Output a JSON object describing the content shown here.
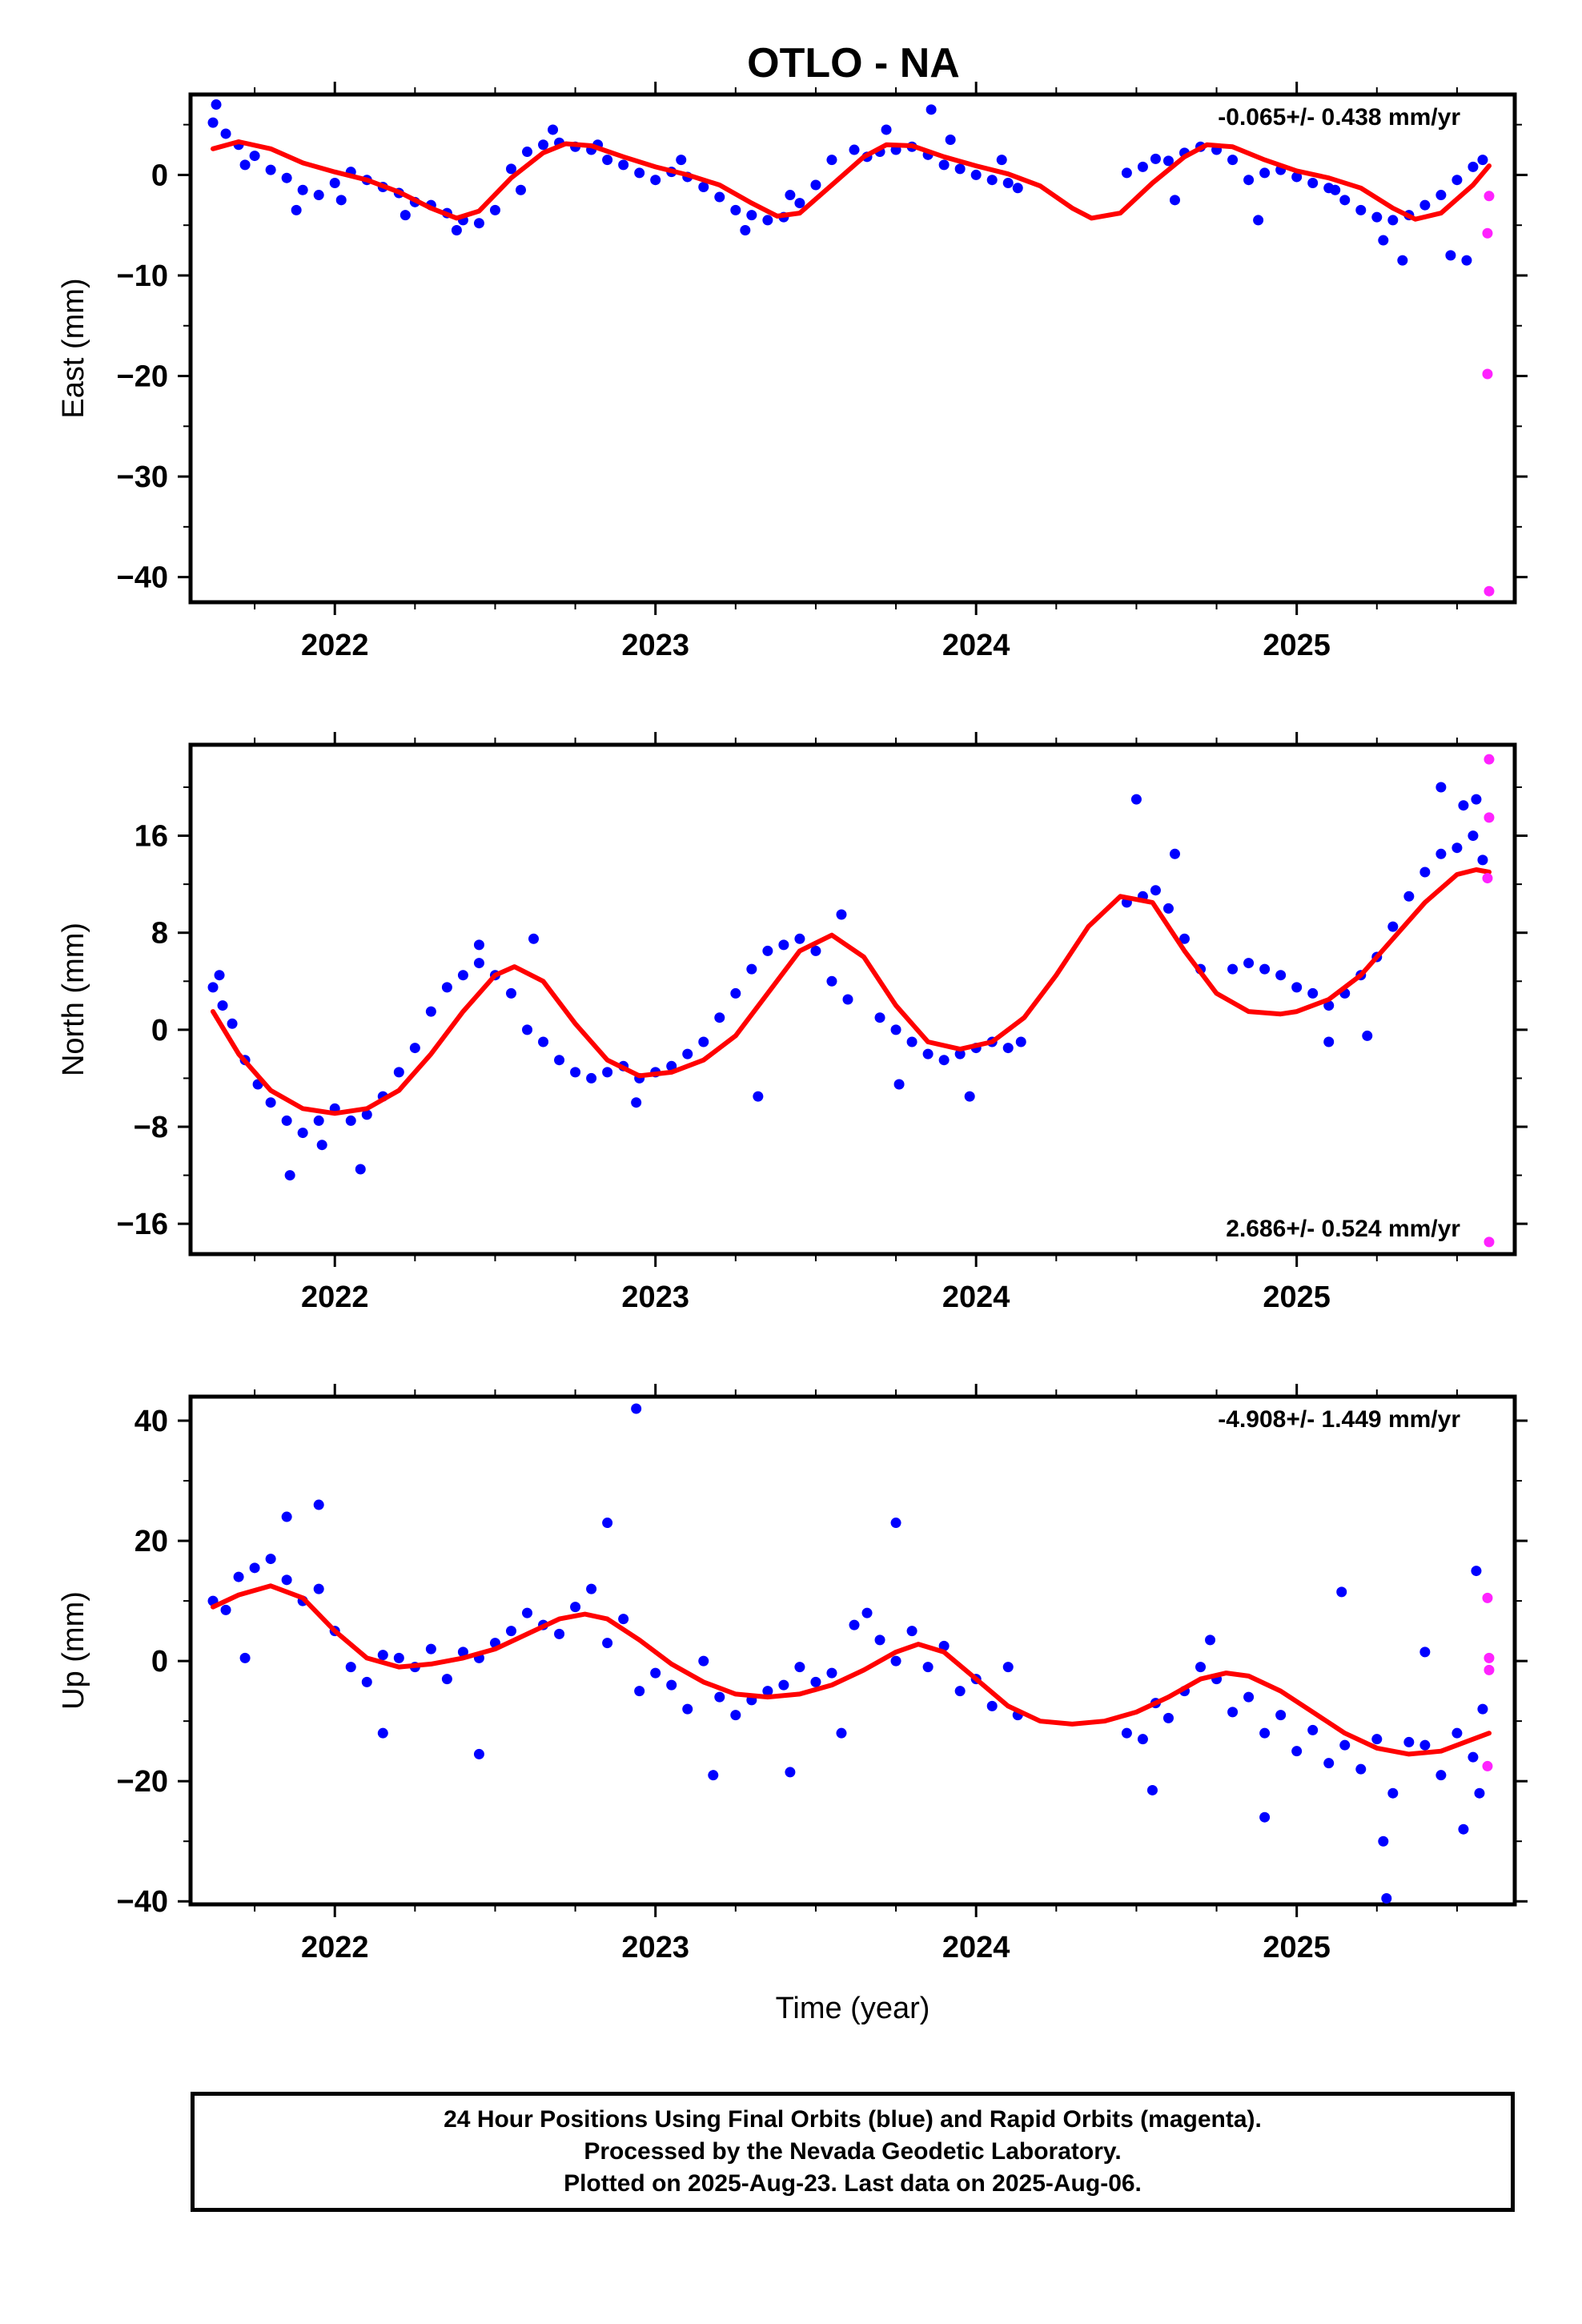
{
  "title": "OTLO - NA",
  "footer": {
    "line1": "24 Hour Positions Using Final Orbits (blue) and Rapid Orbits (magenta).",
    "line2": "Processed by the Nevada Geodetic Laboratory.",
    "line3": "Plotted on 2025-Aug-23. Last data on 2025-Aug-06."
  },
  "colors": {
    "final": "#0000ff",
    "rapid": "#ff22ff",
    "model": "#ff0000",
    "frame": "#000000"
  },
  "chart_data": [
    {
      "type": "scatter",
      "ylabel": "East (mm)",
      "xlabel": "",
      "rate": "-0.065+/- 0.438 mm/yr",
      "rate_position": "top-right",
      "xlim": [
        2021.55,
        2025.68
      ],
      "ylim": [
        -42.5,
        8
      ],
      "xticks": [
        2022,
        2023,
        2024,
        2025
      ],
      "xtick_labels": [
        "2022",
        "2023",
        "2024",
        "2025"
      ],
      "yticks": [
        0,
        -10,
        -20,
        -30,
        -40
      ],
      "ytick_labels": [
        "0",
        "−10",
        "−20",
        "−30",
        "−40"
      ],
      "series": [
        {
          "role": "final",
          "x": [
            2021.62,
            2021.66,
            2021.7,
            2021.75,
            2021.8,
            2021.85,
            2021.9,
            2021.95,
            2022.0,
            2022.05,
            2022.1,
            2022.15,
            2022.2,
            2022.25,
            2022.3,
            2022.35,
            2022.4,
            2022.45,
            2022.5,
            2022.55,
            2022.6,
            2022.65,
            2022.7,
            2022.75,
            2022.8,
            2022.85,
            2022.9,
            2022.95,
            2023.0,
            2023.05,
            2023.1,
            2023.15,
            2023.2,
            2023.25,
            2023.3,
            2023.35,
            2023.4,
            2023.45,
            2023.5,
            2023.55,
            2023.62,
            2023.66,
            2023.7,
            2023.75,
            2023.8,
            2023.85,
            2023.9,
            2023.95,
            2024.0,
            2024.05,
            2024.1,
            2024.13,
            2024.47,
            2024.52,
            2024.56,
            2024.6,
            2024.65,
            2024.7,
            2024.75,
            2024.8,
            2024.85,
            2024.9,
            2024.95,
            2025.0,
            2025.05,
            2025.1,
            2025.15,
            2025.2,
            2025.25,
            2025.3,
            2025.35,
            2025.4,
            2025.45,
            2025.5,
            2025.55,
            2025.58,
            2021.63,
            2021.72,
            2021.88,
            2022.02,
            2022.22,
            2022.38,
            2022.58,
            2022.68,
            2022.82,
            2023.08,
            2023.28,
            2023.42,
            2023.72,
            2023.86,
            2023.92,
            2024.08,
            2024.62,
            2024.88,
            2025.12,
            2025.27,
            2025.33,
            2025.48,
            2025.53
          ],
          "y": [
            5.2,
            4.1,
            3.0,
            1.9,
            0.5,
            -0.3,
            -1.5,
            -2.0,
            -0.8,
            0.3,
            -0.5,
            -1.2,
            -1.8,
            -2.7,
            -3.0,
            -3.8,
            -4.5,
            -4.8,
            -3.5,
            0.6,
            2.3,
            3.0,
            3.2,
            2.8,
            2.5,
            1.5,
            1.0,
            0.2,
            -0.5,
            0.3,
            -0.2,
            -1.2,
            -2.2,
            -3.5,
            -4.0,
            -4.5,
            -4.2,
            -2.8,
            -1.0,
            1.5,
            2.5,
            1.8,
            2.3,
            2.5,
            2.8,
            2.0,
            1.0,
            0.6,
            0.0,
            -0.5,
            -0.8,
            -1.3,
            0.2,
            0.8,
            1.6,
            1.4,
            2.2,
            2.8,
            2.5,
            1.5,
            -0.5,
            0.2,
            0.5,
            -0.2,
            -0.8,
            -1.3,
            -2.5,
            -3.5,
            -4.2,
            -4.5,
            -4.0,
            -3.0,
            -2.0,
            -0.5,
            0.8,
            1.5,
            7.0,
            1.0,
            -3.5,
            -2.5,
            -4.0,
            -5.5,
            -1.5,
            4.5,
            3.0,
            1.5,
            -5.5,
            -2.0,
            4.5,
            6.5,
            3.5,
            1.5,
            -2.5,
            -4.5,
            -1.5,
            -6.5,
            -8.5,
            -8.0,
            -8.5
          ]
        },
        {
          "role": "rapid",
          "x": [
            2025.6,
            2025.595,
            2025.595,
            2025.6
          ],
          "y": [
            -2.1,
            -5.8,
            -19.8,
            -41.4
          ]
        },
        {
          "role": "model",
          "x": [
            2021.62,
            2021.7,
            2021.8,
            2021.9,
            2022.0,
            2022.1,
            2022.2,
            2022.3,
            2022.38,
            2022.45,
            2022.55,
            2022.65,
            2022.72,
            2022.8,
            2022.9,
            2023.0,
            2023.1,
            2023.2,
            2023.3,
            2023.38,
            2023.45,
            2023.55,
            2023.65,
            2023.72,
            2023.8,
            2023.9,
            2024.0,
            2024.1,
            2024.2,
            2024.3,
            2024.36,
            2024.45,
            2024.55,
            2024.65,
            2024.72,
            2024.8,
            2024.9,
            2025.0,
            2025.1,
            2025.2,
            2025.3,
            2025.37,
            2025.45,
            2025.55,
            2025.6
          ],
          "y": [
            2.6,
            3.3,
            2.6,
            1.2,
            0.3,
            -0.5,
            -1.7,
            -3.3,
            -4.3,
            -3.6,
            -0.3,
            2.2,
            3.1,
            2.9,
            1.8,
            0.8,
            0.0,
            -1.0,
            -2.8,
            -4.1,
            -3.8,
            -1.0,
            1.8,
            3.0,
            2.9,
            1.8,
            0.9,
            0.1,
            -1.1,
            -3.3,
            -4.3,
            -3.8,
            -0.8,
            1.8,
            3.0,
            2.8,
            1.5,
            0.4,
            -0.3,
            -1.3,
            -3.3,
            -4.4,
            -3.8,
            -1.0,
            0.9
          ]
        }
      ]
    },
    {
      "type": "scatter",
      "ylabel": "North (mm)",
      "xlabel": "",
      "rate": "2.686+/- 0.524 mm/yr",
      "rate_position": "bottom-right",
      "xlim": [
        2021.55,
        2025.68
      ],
      "ylim": [
        -18.5,
        23.5
      ],
      "xticks": [
        2022,
        2023,
        2024,
        2025
      ],
      "xtick_labels": [
        "2022",
        "2023",
        "2024",
        "2025"
      ],
      "yticks": [
        16,
        8,
        0,
        -8,
        -16
      ],
      "ytick_labels": [
        "16",
        "8",
        "0",
        "−8",
        "−16"
      ],
      "series": [
        {
          "role": "final",
          "x": [
            2021.62,
            2021.65,
            2021.68,
            2021.72,
            2021.76,
            2021.8,
            2021.85,
            2021.9,
            2021.95,
            2022.0,
            2022.05,
            2022.1,
            2022.15,
            2022.2,
            2022.25,
            2022.3,
            2022.35,
            2022.4,
            2022.45,
            2022.5,
            2022.55,
            2022.6,
            2022.65,
            2022.7,
            2022.75,
            2022.8,
            2022.85,
            2022.9,
            2022.95,
            2023.0,
            2023.05,
            2023.1,
            2023.15,
            2023.2,
            2023.25,
            2023.3,
            2023.35,
            2023.4,
            2023.45,
            2023.5,
            2023.55,
            2023.6,
            2023.7,
            2023.75,
            2023.8,
            2023.85,
            2023.9,
            2023.95,
            2024.0,
            2024.05,
            2024.1,
            2024.14,
            2024.47,
            2024.52,
            2024.56,
            2024.6,
            2024.65,
            2024.7,
            2024.8,
            2024.85,
            2024.9,
            2024.95,
            2025.0,
            2025.05,
            2025.1,
            2025.15,
            2025.2,
            2025.25,
            2025.3,
            2025.35,
            2025.4,
            2025.45,
            2025.5,
            2025.55,
            2025.58,
            2021.64,
            2021.86,
            2021.96,
            2022.08,
            2022.45,
            2022.62,
            2022.94,
            2023.32,
            2023.58,
            2023.76,
            2023.98,
            2024.5,
            2024.62,
            2025.1,
            2025.22,
            2025.45,
            2025.52,
            2025.56
          ],
          "y": [
            3.5,
            2.0,
            0.5,
            -2.5,
            -4.5,
            -6.0,
            -7.5,
            -8.5,
            -7.5,
            -6.5,
            -7.5,
            -7.0,
            -5.5,
            -3.5,
            -1.5,
            1.5,
            3.5,
            4.5,
            5.5,
            4.5,
            3.0,
            0.0,
            -1.0,
            -2.5,
            -3.5,
            -4.0,
            -3.5,
            -3.0,
            -4.0,
            -3.5,
            -3.0,
            -2.0,
            -1.0,
            1.0,
            3.0,
            5.0,
            6.5,
            7.0,
            7.5,
            6.5,
            4.0,
            2.5,
            1.0,
            0.0,
            -1.0,
            -2.0,
            -2.5,
            -2.0,
            -1.5,
            -1.0,
            -1.5,
            -1.0,
            10.5,
            11.0,
            11.5,
            10.0,
            7.5,
            5.0,
            5.0,
            5.5,
            5.0,
            4.5,
            3.5,
            3.0,
            2.0,
            3.0,
            4.5,
            6.0,
            8.5,
            11.0,
            13.0,
            14.5,
            15.0,
            16.0,
            14.0,
            4.5,
            -12.0,
            -9.5,
            -11.5,
            7.0,
            7.5,
            -6.0,
            -5.5,
            9.5,
            -4.5,
            -5.5,
            19.0,
            14.5,
            -1.0,
            -0.5,
            20.0,
            18.5,
            19.0
          ]
        },
        {
          "role": "rapid",
          "x": [
            2025.6,
            2025.6,
            2025.595,
            2025.6
          ],
          "y": [
            22.3,
            17.5,
            12.5,
            -17.5
          ]
        },
        {
          "role": "model",
          "x": [
            2021.62,
            2021.7,
            2021.8,
            2021.9,
            2022.0,
            2022.1,
            2022.2,
            2022.3,
            2022.4,
            2022.5,
            2022.56,
            2022.65,
            2022.75,
            2022.85,
            2022.95,
            2023.05,
            2023.15,
            2023.25,
            2023.35,
            2023.45,
            2023.55,
            2023.65,
            2023.75,
            2023.85,
            2023.95,
            2024.05,
            2024.15,
            2024.25,
            2024.35,
            2024.45,
            2024.55,
            2024.65,
            2024.75,
            2024.85,
            2024.95,
            2025.0,
            2025.1,
            2025.2,
            2025.3,
            2025.4,
            2025.5,
            2025.56,
            2025.6
          ],
          "y": [
            1.5,
            -2.0,
            -5.0,
            -6.5,
            -6.9,
            -6.5,
            -5.0,
            -2.0,
            1.5,
            4.5,
            5.2,
            4.0,
            0.5,
            -2.5,
            -3.8,
            -3.5,
            -2.5,
            -0.5,
            3.0,
            6.5,
            7.8,
            6.0,
            2.0,
            -1.0,
            -1.6,
            -1.0,
            1.0,
            4.5,
            8.5,
            11.0,
            10.5,
            6.5,
            3.0,
            1.5,
            1.3,
            1.5,
            2.5,
            4.5,
            7.5,
            10.5,
            12.8,
            13.2,
            13.0
          ]
        }
      ]
    },
    {
      "type": "scatter",
      "ylabel": "Up (mm)",
      "xlabel": "Time (year)",
      "rate": "-4.908+/- 1.449 mm/yr",
      "rate_position": "top-right",
      "xlim": [
        2021.55,
        2025.68
      ],
      "ylim": [
        -40.5,
        44
      ],
      "xticks": [
        2022,
        2023,
        2024,
        2025
      ],
      "xtick_labels": [
        "2022",
        "2023",
        "2024",
        "2025"
      ],
      "yticks": [
        40,
        20,
        0,
        -20,
        -40
      ],
      "ytick_labels": [
        "40",
        "20",
        "0",
        "−20",
        "−40"
      ],
      "series": [
        {
          "role": "final",
          "x": [
            2021.62,
            2021.66,
            2021.7,
            2021.75,
            2021.8,
            2021.85,
            2021.9,
            2021.95,
            2022.0,
            2022.05,
            2022.1,
            2022.15,
            2022.2,
            2022.25,
            2022.3,
            2022.35,
            2022.4,
            2022.45,
            2022.5,
            2022.55,
            2022.6,
            2022.65,
            2022.7,
            2022.75,
            2022.8,
            2022.85,
            2022.9,
            2022.95,
            2023.0,
            2023.05,
            2023.1,
            2023.15,
            2023.2,
            2023.25,
            2023.3,
            2023.35,
            2023.4,
            2023.45,
            2023.5,
            2023.55,
            2023.62,
            2023.66,
            2023.7,
            2023.75,
            2023.8,
            2023.85,
            2023.9,
            2023.95,
            2024.0,
            2024.05,
            2024.1,
            2024.13,
            2024.47,
            2024.52,
            2024.56,
            2024.6,
            2024.65,
            2024.7,
            2024.75,
            2024.8,
            2024.85,
            2024.9,
            2024.95,
            2025.0,
            2025.05,
            2025.1,
            2025.15,
            2025.2,
            2025.25,
            2025.3,
            2025.35,
            2025.4,
            2025.45,
            2025.5,
            2025.55,
            2025.58,
            2022.94,
            2021.85,
            2021.95,
            2022.85,
            2022.45,
            2023.18,
            2023.42,
            2023.75,
            2024.55,
            2024.73,
            2025.14,
            2025.27,
            2025.28,
            2025.4,
            2025.52,
            2025.56,
            2025.57,
            2021.72,
            2022.15,
            2023.58,
            2024.9
          ],
          "y": [
            10.0,
            8.5,
            14.0,
            15.5,
            17.0,
            13.5,
            10.0,
            12.0,
            5.0,
            -1.0,
            -3.5,
            1.0,
            0.5,
            -1.0,
            2.0,
            -3.0,
            1.5,
            0.5,
            3.0,
            5.0,
            8.0,
            6.0,
            4.5,
            9.0,
            12.0,
            3.0,
            7.0,
            -5.0,
            -2.0,
            -4.0,
            -8.0,
            0.0,
            -6.0,
            -9.0,
            -6.5,
            -5.0,
            -4.0,
            -1.0,
            -3.5,
            -2.0,
            6.0,
            8.0,
            3.5,
            0.0,
            5.0,
            -1.0,
            2.5,
            -5.0,
            -3.0,
            -7.5,
            -1.0,
            -9.0,
            -12.0,
            -13.0,
            -7.0,
            -9.5,
            -5.0,
            -1.0,
            -3.0,
            -8.5,
            -6.0,
            -12.0,
            -9.0,
            -15.0,
            -11.5,
            -17.0,
            -14.0,
            -18.0,
            -13.0,
            -22.0,
            -13.5,
            -14.0,
            -19.0,
            -12.0,
            -16.0,
            -8.0,
            42.0,
            24.0,
            26.0,
            23.0,
            -15.5,
            -19.0,
            -18.5,
            23.0,
            -21.5,
            3.5,
            11.5,
            -30.0,
            -39.5,
            1.5,
            -28.0,
            15.0,
            -22.0,
            0.5,
            -12.0,
            -12.0,
            -26.0
          ]
        },
        {
          "role": "rapid",
          "x": [
            2025.595,
            2025.6,
            2025.6,
            2025.595
          ],
          "y": [
            10.5,
            0.5,
            -1.5,
            -17.5
          ]
        },
        {
          "role": "model",
          "x": [
            2021.62,
            2021.7,
            2021.8,
            2021.9,
            2022.0,
            2022.1,
            2022.2,
            2022.3,
            2022.4,
            2022.5,
            2022.6,
            2022.7,
            2022.78,
            2022.85,
            2022.95,
            2023.05,
            2023.15,
            2023.25,
            2023.35,
            2023.45,
            2023.55,
            2023.65,
            2023.75,
            2023.82,
            2023.9,
            2024.0,
            2024.1,
            2024.2,
            2024.3,
            2024.4,
            2024.5,
            2024.6,
            2024.7,
            2024.78,
            2024.85,
            2024.95,
            2025.05,
            2025.15,
            2025.25,
            2025.35,
            2025.45,
            2025.55,
            2025.6
          ],
          "y": [
            9.0,
            11.0,
            12.5,
            10.5,
            5.0,
            0.5,
            -1.0,
            -0.5,
            0.5,
            2.0,
            4.5,
            7.0,
            7.8,
            7.0,
            3.5,
            -0.5,
            -3.5,
            -5.5,
            -6.0,
            -5.5,
            -4.0,
            -1.5,
            1.5,
            2.8,
            1.5,
            -3.0,
            -7.5,
            -10.0,
            -10.5,
            -10.0,
            -8.5,
            -6.0,
            -3.0,
            -2.0,
            -2.5,
            -5.0,
            -8.5,
            -12.0,
            -14.5,
            -15.5,
            -15.0,
            -13.0,
            -12.0
          ]
        }
      ]
    }
  ]
}
